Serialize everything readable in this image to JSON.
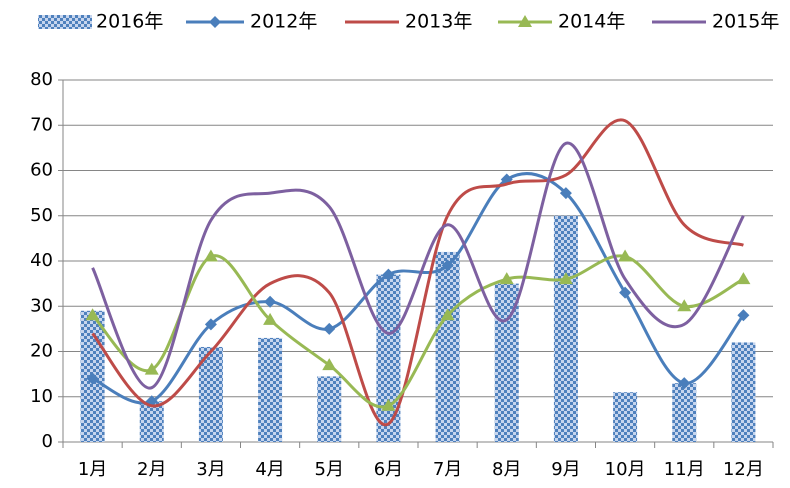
{
  "chart_data": {
    "type": "bar-line",
    "categories": [
      "1月",
      "2月",
      "3月",
      "4月",
      "5月",
      "6月",
      "7月",
      "8月",
      "9月",
      "10月",
      "11月",
      "12月"
    ],
    "series": [
      {
        "name": "2016年",
        "type": "bar",
        "color": "#4f81bd",
        "values": [
          29,
          9,
          21,
          23,
          14.5,
          37,
          42,
          35,
          50,
          11,
          13,
          22
        ]
      },
      {
        "name": "2012年",
        "type": "line",
        "marker": "diamond",
        "color": "#4a7ebb",
        "values": [
          14,
          9,
          26,
          31,
          25,
          37,
          39,
          58,
          55,
          33,
          13,
          28
        ]
      },
      {
        "name": "2013年",
        "type": "line",
        "marker": "none",
        "color": "#be4b48",
        "values": [
          24,
          8,
          20,
          35,
          33,
          4,
          50,
          57,
          59,
          71,
          48,
          43.5
        ]
      },
      {
        "name": "2014年",
        "type": "line",
        "marker": "triangle",
        "color": "#98b954",
        "values": [
          28,
          16,
          41,
          27,
          17,
          8,
          28,
          36,
          36,
          41,
          30,
          36
        ]
      },
      {
        "name": "2015年",
        "type": "line",
        "marker": "none",
        "color": "#7d60a0",
        "values": [
          38.5,
          12,
          49,
          55,
          52,
          24,
          48,
          27,
          66,
          36,
          26,
          50
        ]
      }
    ],
    "ylim": [
      0,
      80
    ],
    "yticks": [
      0,
      10,
      20,
      30,
      40,
      50,
      60,
      70,
      80
    ],
    "grid": true,
    "smooth": true,
    "legend": "top"
  }
}
